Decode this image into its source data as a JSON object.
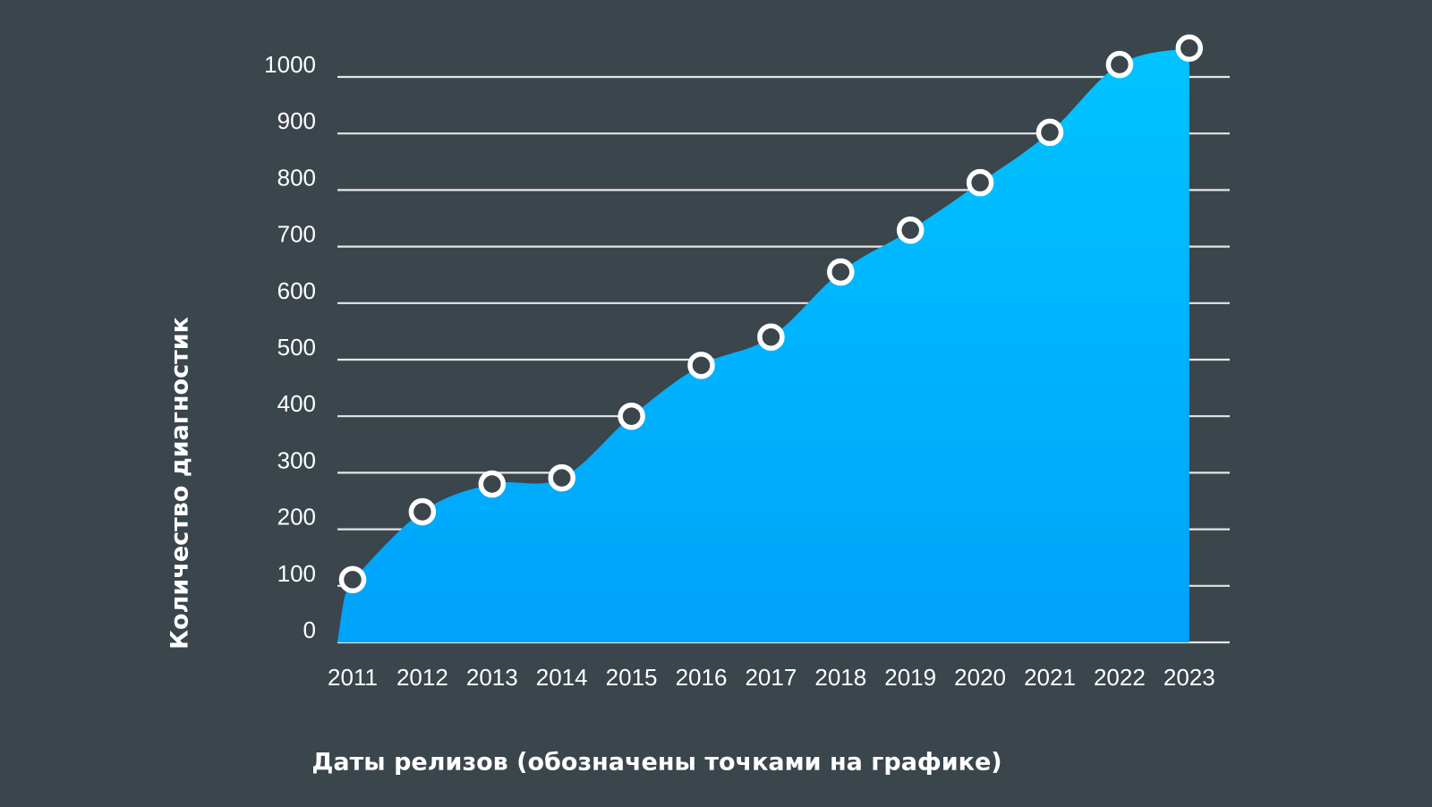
{
  "chart_data": {
    "type": "area",
    "title": "",
    "xlabel": "Даты релизов (обозначены точками на графике)",
    "ylabel": "Количество диагностик",
    "categories": [
      "2011",
      "2012",
      "2013",
      "2014",
      "2015",
      "2016",
      "2017",
      "2018",
      "2019",
      "2020",
      "2021",
      "2022",
      "2023"
    ],
    "series": [
      {
        "name": "Количество диагностик",
        "values": [
          111,
          231,
          280,
          291,
          400,
          490,
          540,
          655,
          729,
          813,
          902,
          1022,
          1051
        ]
      }
    ],
    "yticks": [
      0,
      100,
      200,
      300,
      400,
      500,
      600,
      700,
      800,
      900,
      1000
    ],
    "ylim": [
      0,
      1050
    ],
    "grid": true,
    "legend": "none",
    "markers": "hollow-circle"
  },
  "colors": {
    "background": "#3a454c",
    "area_top": "#00c4ff",
    "area_bottom": "#00a2fb",
    "gridline": "#e6e6e6",
    "marker_stroke": "#ffffff",
    "text": "#ffffff"
  }
}
